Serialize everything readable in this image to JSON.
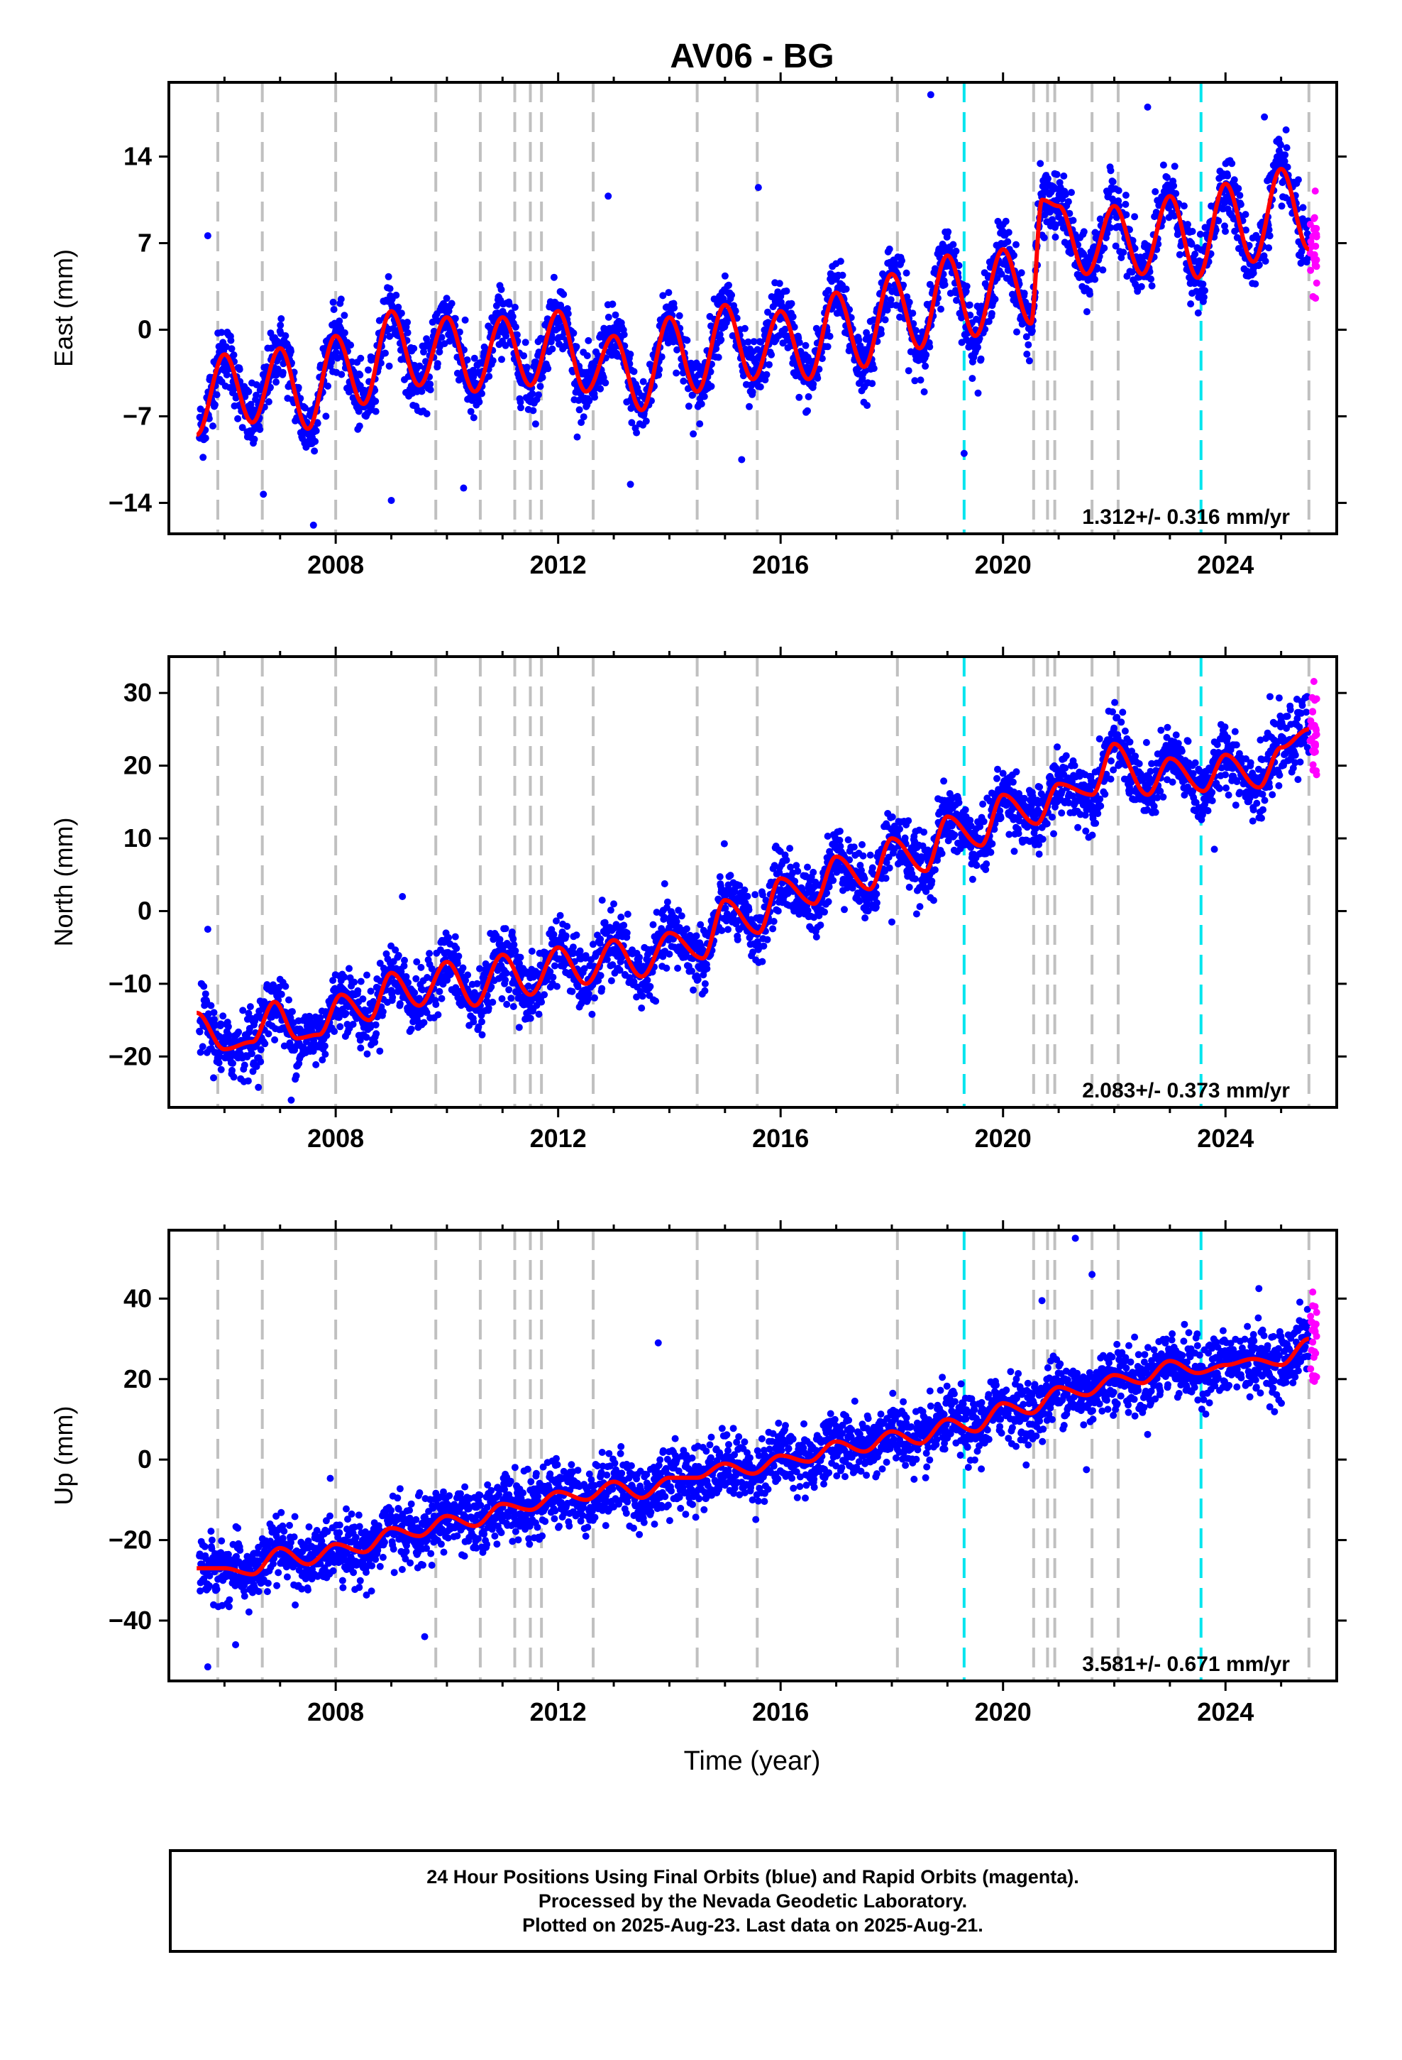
{
  "title": "AV06 - BG",
  "xlabel": "Time (year)",
  "footer": [
    "24 Hour Positions Using Final Orbits (blue) and Rapid Orbits (magenta).",
    "Processed by the Nevada Geodetic Laboratory.",
    "Plotted on 2025-Aug-23. Last data on 2025-Aug-21."
  ],
  "colors": {
    "final_orbits": "#0000ff",
    "rapid_orbits": "#ff00ff",
    "model_fit": "#ff0000",
    "equipment_change": "#c0c0c0",
    "earthquake": "#00e5ee"
  },
  "chart_data": [
    {
      "type": "scatter",
      "panel": "east",
      "ylabel": "East (mm)",
      "xlim": [
        2005.0,
        2026.0
      ],
      "ylim": [
        -16.5,
        20
      ],
      "xticks": [
        2008,
        2012,
        2016,
        2020,
        2024
      ],
      "yticks": [
        -14,
        -7,
        0,
        7,
        14
      ],
      "rate_label": "1.312+/- 0.316 mm/yr",
      "series": [
        {
          "name": "Final Orbits",
          "color": "blue"
        },
        {
          "name": "Rapid Orbits",
          "color": "magenta"
        }
      ],
      "model": {
        "rate": 1.312,
        "offset": -4.2,
        "annual_amp": 4.8,
        "trend_start": 2005.5
      },
      "model_fit": {
        "x": [
          2005.5,
          2006.0,
          2006.5,
          2007.0,
          2007.5,
          2008.0,
          2008.5,
          2009.0,
          2009.5,
          2010.0,
          2010.5,
          2011.0,
          2011.5,
          2012.0,
          2012.5,
          2013.0,
          2013.5,
          2014.0,
          2014.5,
          2015.0,
          2015.5,
          2016.0,
          2016.5,
          2017.0,
          2017.5,
          2018.0,
          2018.5,
          2019.0,
          2019.5,
          2020.0,
          2020.5,
          2020.7,
          2021.0,
          2021.5,
          2022.0,
          2022.5,
          2023.0,
          2023.5,
          2024.0,
          2024.5,
          2025.0,
          2025.5
        ],
        "y": [
          -8.5,
          -2.0,
          -7.5,
          -1.5,
          -8.0,
          -0.5,
          -6.0,
          1.5,
          -4.5,
          1.0,
          -5.0,
          1.0,
          -4.5,
          1.5,
          -5.0,
          -0.5,
          -6.5,
          1.0,
          -5.0,
          2.0,
          -4.0,
          1.5,
          -4.0,
          3.0,
          -3.0,
          4.5,
          -1.5,
          6.0,
          -0.5,
          6.5,
          0.5,
          10.5,
          10.0,
          4.5,
          10.0,
          4.5,
          10.8,
          4.2,
          11.8,
          5.5,
          13.0,
          6.5
        ]
      },
      "outliers": [
        {
          "x": 2005.7,
          "y": 7.6
        },
        {
          "x": 2012.9,
          "y": 10.8
        },
        {
          "x": 2015.6,
          "y": 11.5
        },
        {
          "x": 2018.7,
          "y": 19.0
        },
        {
          "x": 2022.6,
          "y": 18.0
        },
        {
          "x": 2024.7,
          "y": 17.2
        },
        {
          "x": 2007.6,
          "y": -15.8
        },
        {
          "x": 2009.0,
          "y": -13.8
        },
        {
          "x": 2010.3,
          "y": -12.8
        },
        {
          "x": 2013.3,
          "y": -12.5
        },
        {
          "x": 2015.3,
          "y": -10.5
        },
        {
          "x": 2019.3,
          "y": -10.0
        },
        {
          "x": 2006.7,
          "y": -13.3
        }
      ],
      "equipment_changes": [
        2005.88,
        2006.68,
        2008.0,
        2009.8,
        2010.6,
        2011.22,
        2011.5,
        2011.7,
        2012.63,
        2014.5,
        2015.58,
        2018.1,
        2020.55,
        2020.8,
        2020.93,
        2021.6,
        2022.07,
        2025.5
      ],
      "earthquakes": [
        2019.3,
        2023.56
      ]
    },
    {
      "type": "scatter",
      "panel": "north",
      "ylabel": "North (mm)",
      "xlim": [
        2005.0,
        2026.0
      ],
      "ylim": [
        -27,
        35
      ],
      "xticks": [
        2008,
        2012,
        2016,
        2020,
        2024
      ],
      "yticks": [
        -20,
        -10,
        0,
        10,
        20,
        30
      ],
      "rate_label": "2.083+/- 0.373 mm/yr",
      "series": [
        {
          "name": "Final Orbits",
          "color": "blue"
        },
        {
          "name": "Rapid Orbits",
          "color": "magenta"
        }
      ],
      "model": {
        "rate": 2.083,
        "offset": -16.5,
        "annual_amp": 2.8,
        "trend_start": 2005.5
      },
      "model_fit": {
        "x": [
          2005.5,
          2006.0,
          2006.5,
          2006.9,
          2007.3,
          2007.7,
          2008.1,
          2008.6,
          2009.0,
          2009.5,
          2010.0,
          2010.5,
          2011.0,
          2011.5,
          2012.0,
          2012.5,
          2013.0,
          2013.5,
          2014.0,
          2014.6,
          2015.0,
          2015.6,
          2016.0,
          2016.6,
          2017.0,
          2017.6,
          2018.0,
          2018.6,
          2019.0,
          2019.6,
          2020.0,
          2020.6,
          2021.0,
          2021.6,
          2022.0,
          2022.6,
          2023.0,
          2023.6,
          2024.0,
          2024.6,
          2025.0,
          2025.5
        ],
        "y": [
          -14.0,
          -19.0,
          -18.0,
          -12.5,
          -17.5,
          -17.0,
          -11.5,
          -15.0,
          -8.5,
          -13.0,
          -7.0,
          -13.0,
          -6.0,
          -11.5,
          -5.0,
          -10.0,
          -4.0,
          -9.0,
          -3.0,
          -6.5,
          1.5,
          -3.0,
          4.5,
          1.0,
          7.5,
          3.0,
          10.0,
          5.5,
          13.0,
          9.0,
          16.0,
          12.0,
          17.5,
          16.0,
          23.0,
          16.0,
          21.0,
          16.5,
          21.5,
          17.0,
          22.5,
          25.0
        ]
      },
      "outliers": [
        {
          "x": 2005.7,
          "y": -2.5
        },
        {
          "x": 2009.2,
          "y": 2.0
        },
        {
          "x": 2007.2,
          "y": -26.0
        },
        {
          "x": 2011.3,
          "y": -16.0
        },
        {
          "x": 2018.0,
          "y": -1.5
        },
        {
          "x": 2023.8,
          "y": 8.5
        },
        {
          "x": 2021.9,
          "y": 27.5
        },
        {
          "x": 2024.8,
          "y": 29.5
        }
      ],
      "equipment_changes": [
        2005.88,
        2006.68,
        2008.0,
        2009.8,
        2010.6,
        2011.22,
        2011.5,
        2011.7,
        2012.63,
        2014.5,
        2015.58,
        2018.1,
        2020.55,
        2020.8,
        2020.93,
        2021.6,
        2022.07,
        2025.5
      ],
      "earthquakes": [
        2019.3,
        2023.56
      ]
    },
    {
      "type": "scatter",
      "panel": "up",
      "ylabel": "Up (mm)",
      "xlim": [
        2005.0,
        2026.0
      ],
      "ylim": [
        -55,
        57
      ],
      "xticks": [
        2008,
        2012,
        2016,
        2020,
        2024
      ],
      "yticks": [
        -40,
        -20,
        0,
        20,
        40
      ],
      "rate_label": "3.581+/- 0.671 mm/yr",
      "series": [
        {
          "name": "Final Orbits",
          "color": "blue"
        },
        {
          "name": "Rapid Orbits",
          "color": "magenta"
        }
      ],
      "model": {
        "rate": 3.581,
        "offset": -26.5,
        "annual_amp": 2.2,
        "trend_start": 2005.5
      },
      "model_fit": {
        "x": [
          2005.5,
          2006.0,
          2006.5,
          2007.0,
          2007.5,
          2008.0,
          2008.5,
          2009.0,
          2009.5,
          2010.0,
          2010.5,
          2011.0,
          2011.5,
          2012.0,
          2012.5,
          2013.0,
          2013.5,
          2014.0,
          2014.5,
          2015.0,
          2015.5,
          2016.0,
          2016.5,
          2017.0,
          2017.5,
          2018.0,
          2018.5,
          2019.0,
          2019.5,
          2020.0,
          2020.5,
          2021.0,
          2021.5,
          2022.0,
          2022.5,
          2023.0,
          2023.5,
          2024.0,
          2024.5,
          2025.0,
          2025.5
        ],
        "y": [
          -27.0,
          -27.0,
          -28.5,
          -22.0,
          -26.0,
          -21.0,
          -23.0,
          -17.0,
          -19.0,
          -14.0,
          -16.5,
          -11.0,
          -12.5,
          -8.0,
          -10.0,
          -5.5,
          -9.5,
          -4.5,
          -4.5,
          -1.0,
          -3.5,
          1.0,
          -0.5,
          4.5,
          2.0,
          7.0,
          4.0,
          10.0,
          7.0,
          14.0,
          11.5,
          18.0,
          16.0,
          21.0,
          19.0,
          24.5,
          21.5,
          23.5,
          25.0,
          23.5,
          30.0
        ]
      },
      "outliers": [
        {
          "x": 2005.7,
          "y": -51.5
        },
        {
          "x": 2006.2,
          "y": -46.0
        },
        {
          "x": 2009.6,
          "y": -44.0
        },
        {
          "x": 2013.8,
          "y": 29.0
        },
        {
          "x": 2021.3,
          "y": 55.0
        },
        {
          "x": 2021.6,
          "y": 46.0
        },
        {
          "x": 2020.7,
          "y": 39.5
        },
        {
          "x": 2024.6,
          "y": 42.5
        },
        {
          "x": 2021.5,
          "y": -2.5
        }
      ],
      "equipment_changes": [
        2005.88,
        2006.68,
        2008.0,
        2009.8,
        2010.6,
        2011.22,
        2011.5,
        2011.7,
        2012.63,
        2014.5,
        2015.58,
        2018.1,
        2020.55,
        2020.8,
        2020.93,
        2021.6,
        2022.07,
        2025.5
      ],
      "earthquakes": [
        2019.3,
        2023.56
      ]
    }
  ]
}
